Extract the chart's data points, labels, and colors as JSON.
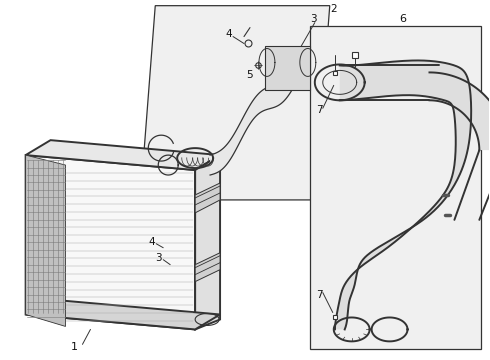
{
  "background_color": "#ffffff",
  "line_color": "#333333",
  "label_color": "#111111",
  "bg_fill": "#ebebeb",
  "rad_fill": "#f5f5f5",
  "hose_fill": "#d8d8d8"
}
